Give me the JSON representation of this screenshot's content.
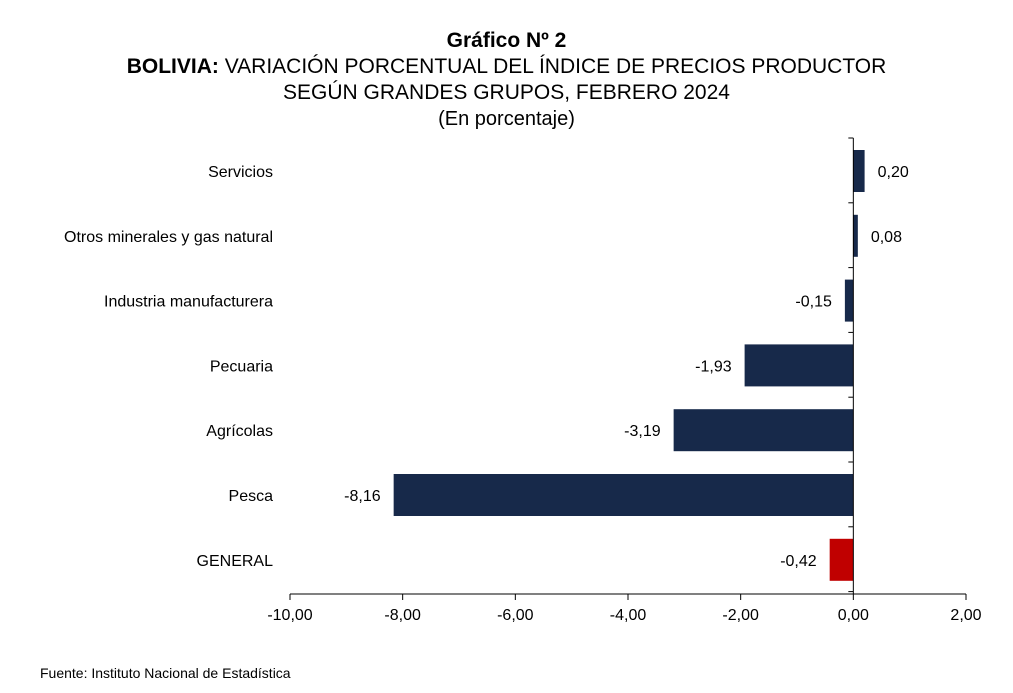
{
  "title": {
    "line1": "Gráfico Nº 2",
    "line2_bold": "BOLIVIA:",
    "line2_rest": " VARIACIÓN PORCENTUAL DEL ÍNDICE DE PRECIOS PRODUCTOR",
    "line3": "SEGÚN GRANDES GRUPOS, FEBRERO 2024",
    "line4": "(En porcentaje)"
  },
  "source": "Fuente: Instituto Nacional de Estadística",
  "colors": {
    "bar": "#17294a",
    "highlight": "#c00000",
    "axis": "#000000"
  },
  "chart_data": {
    "type": "bar",
    "orientation": "horizontal",
    "categories": [
      "Servicios",
      "Otros minerales y gas natural",
      "Industria manufacturera",
      "Pecuaria",
      "Agrícolas",
      "Pesca",
      "GENERAL"
    ],
    "values": [
      0.2,
      0.08,
      -0.15,
      -1.93,
      -3.19,
      -8.16,
      -0.42
    ],
    "value_labels": [
      "0,20",
      "0,08",
      "-0,15",
      "-1,93",
      "-3,19",
      "-8,16",
      "-0,42"
    ],
    "highlight_category": "GENERAL",
    "xlim": [
      -10,
      2
    ],
    "x_ticks": [
      -10,
      -8,
      -6,
      -4,
      -2,
      0,
      2
    ],
    "x_tick_labels": [
      "-10,00",
      "-8,00",
      "-6,00",
      "-4,00",
      "-2,00",
      "0,00",
      "2,00"
    ],
    "grid": false,
    "legend": "none"
  }
}
